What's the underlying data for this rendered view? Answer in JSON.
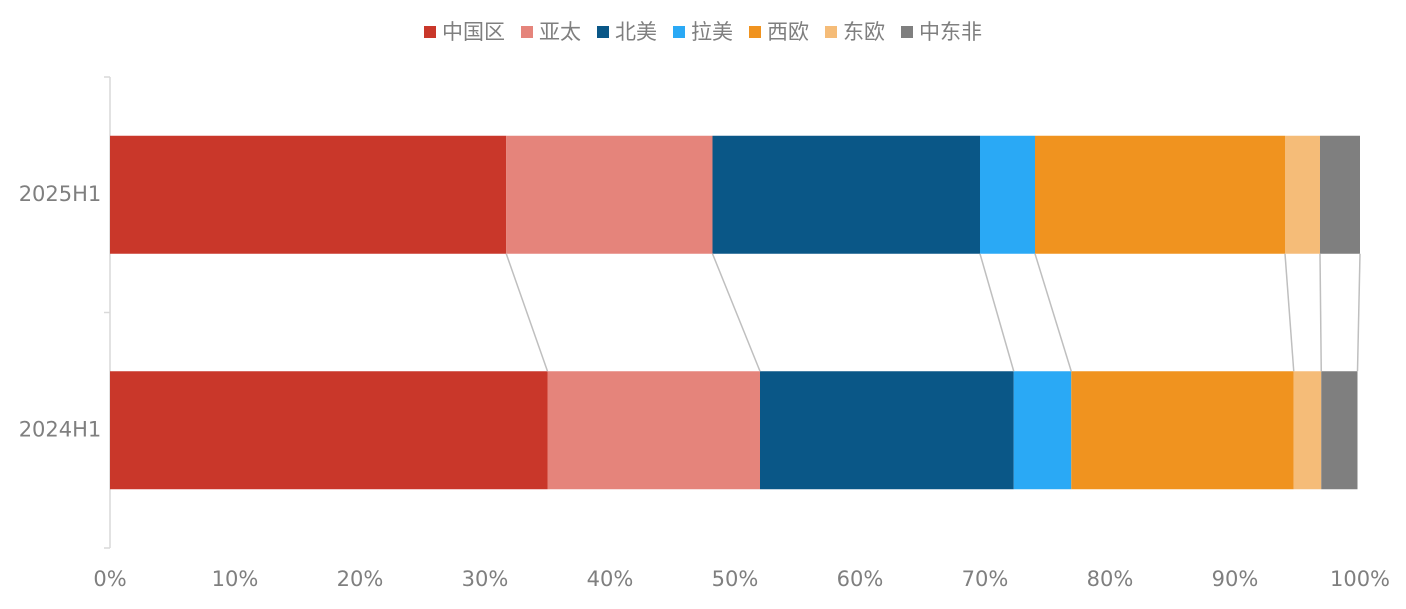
{
  "chart_data": {
    "type": "stacked-bar-horizontal",
    "categories": [
      "2025H1",
      "2024H1"
    ],
    "series": [
      {
        "name": "中国区",
        "color": "#c9372a",
        "values": [
          31.7,
          35.0
        ]
      },
      {
        "name": "亚太",
        "color": "#e5847b",
        "values": [
          16.5,
          17.0
        ]
      },
      {
        "name": "北美",
        "color": "#0a5787",
        "values": [
          21.4,
          20.3
        ]
      },
      {
        "name": "拉美",
        "color": "#2aa9f5",
        "values": [
          4.4,
          4.6
        ]
      },
      {
        "name": "西欧",
        "color": "#f0931f",
        "values": [
          20.0,
          17.8
        ]
      },
      {
        "name": "东欧",
        "color": "#f5bc78",
        "values": [
          2.8,
          2.2
        ]
      },
      {
        "name": "中东非",
        "color": "#7f7f7f",
        "values": [
          3.2,
          2.9
        ]
      }
    ],
    "xlim": [
      0,
      100
    ],
    "xticks": [
      {
        "value": 0,
        "label": "0%"
      },
      {
        "value": 10,
        "label": "10%"
      },
      {
        "value": 20,
        "label": "20%"
      },
      {
        "value": 30,
        "label": "30%"
      },
      {
        "value": 40,
        "label": "40%"
      },
      {
        "value": 50,
        "label": "50%"
      },
      {
        "value": 60,
        "label": "60%"
      },
      {
        "value": 70,
        "label": "70%"
      },
      {
        "value": 80,
        "label": "80%"
      },
      {
        "value": 90,
        "label": "90%"
      },
      {
        "value": 100,
        "label": "100%"
      }
    ],
    "legend": "top",
    "connectors": true
  }
}
